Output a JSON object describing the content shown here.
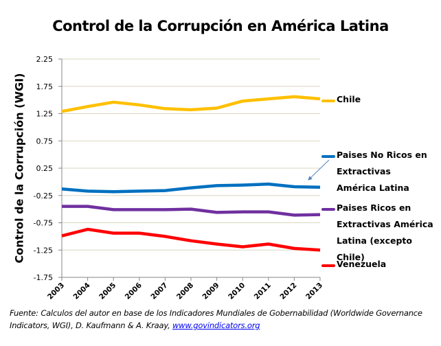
{
  "chart_data": {
    "type": "line",
    "title": "Control de la Corrupción en América Latina",
    "xlabel": "",
    "ylabel": "Control de la Corrupción  (WGI)",
    "x": [
      "2003",
      "2004",
      "2005",
      "2006",
      "2007",
      "2008",
      "2009",
      "2010",
      "2011",
      "2012",
      "2013"
    ],
    "ylim": [
      -1.75,
      2.25
    ],
    "yticks": [
      "2.25",
      "1.75",
      "1.25",
      "0.75",
      "0.25",
      "-0.25",
      "-0.75",
      "-1.25",
      "-1.75"
    ],
    "ytick_values": [
      2.25,
      1.75,
      1.25,
      0.75,
      0.25,
      -0.25,
      -0.75,
      -1.25,
      -1.75
    ],
    "grid": true,
    "legend_position": "right",
    "series": [
      {
        "name": "Chile",
        "color": "#ffc000",
        "values": [
          1.29,
          1.38,
          1.46,
          1.41,
          1.34,
          1.32,
          1.35,
          1.48,
          1.52,
          1.56,
          1.52
        ]
      },
      {
        "name": "Paises No Ricos en Extractivas América Latina",
        "color": "#0070c0",
        "values": [
          -0.13,
          -0.17,
          -0.18,
          -0.17,
          -0.16,
          -0.11,
          -0.07,
          -0.06,
          -0.04,
          -0.09,
          -0.1
        ]
      },
      {
        "name": "Paises Ricos en Extractivas América Latina (excepto Chile)",
        "color": "#7030a0",
        "values": [
          -0.45,
          -0.45,
          -0.51,
          -0.51,
          -0.51,
          -0.5,
          -0.56,
          -0.55,
          -0.55,
          -0.61,
          -0.6
        ]
      },
      {
        "name": "Venezuela",
        "color": "#ff0000",
        "values": [
          -0.99,
          -0.87,
          -0.94,
          -0.94,
          -1.0,
          -1.08,
          -1.14,
          -1.19,
          -1.14,
          -1.22,
          -1.25
        ]
      }
    ],
    "annotations": [
      {
        "type": "arrow",
        "from_legend": "Paises No Ricos en Extractivas América Latina",
        "points_to_series": "Paises No Ricos en Extractivas América Latina",
        "color": "#4f81bd"
      }
    ]
  },
  "legend": {
    "items": [
      {
        "label": "Chile",
        "color": "#ffc000"
      },
      {
        "label": "Paises No Ricos en Extractivas América Latina",
        "color": "#0070c0"
      },
      {
        "label": "Paises Ricos en Extractivas América Latina (excepto Chile)",
        "color": "#7030a0"
      },
      {
        "label": "Venezuela",
        "color": "#ff0000"
      }
    ]
  },
  "source": {
    "text": "Fuente:  Calculos  del autor  en base de los Indicadores  Mundiales  de Gobernabilidad  (Worldwide Governance  Indicators, WGI),  D. Kaufmann  & A. Kraay, ",
    "link_text": "www.govindicators.org"
  },
  "colors": {
    "grid": "#d9d5c0",
    "axis": "#868686",
    "arrow": "#4f81bd"
  }
}
